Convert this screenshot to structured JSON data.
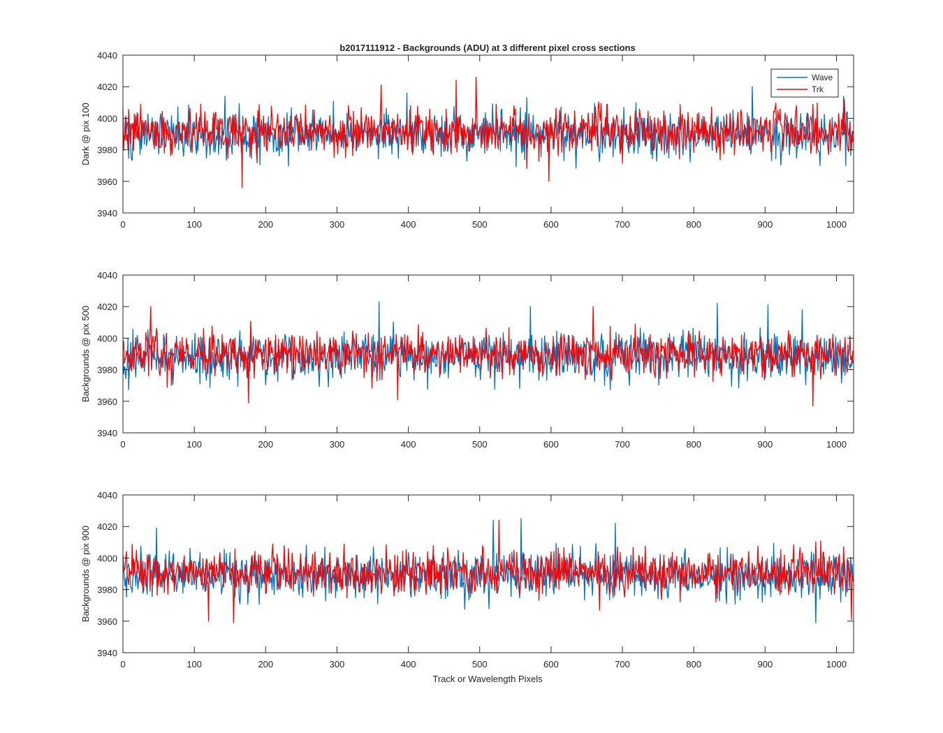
{
  "chart_data": [
    {
      "type": "line",
      "title": "b2017111912 - Backgrounds (ADU) at 3 different pixel cross sections",
      "xlabel": "",
      "ylabel": "Dark @ pix 100",
      "xlim": [
        0,
        1024
      ],
      "ylim": [
        3940,
        4040
      ],
      "xticks": [
        0,
        100,
        200,
        300,
        400,
        500,
        600,
        700,
        800,
        900,
        1000
      ],
      "yticks": [
        3940,
        3960,
        3980,
        4000,
        4020,
        4040
      ],
      "grid": false,
      "legend": {
        "position": "top-right",
        "entries": [
          "Wave",
          "Trk"
        ]
      },
      "series": [
        {
          "name": "Wave",
          "color": "#0072BD",
          "mean": 3990,
          "std": 7.5,
          "seed": 101,
          "peaks": [
            [
              143,
              4014
            ],
            [
              398,
              4016
            ],
            [
              566,
              4013
            ],
            [
              882,
              4020
            ],
            [
              1010,
              4014
            ]
          ]
        },
        {
          "name": "Trk",
          "color": "#FF0000",
          "mean": 3992,
          "std": 7.0,
          "seed": 202,
          "peaks": [
            [
              167,
              3956
            ],
            [
              362,
              4021
            ],
            [
              467,
              4024
            ],
            [
              495,
              4026
            ],
            [
              597,
              3960
            ],
            [
              1011,
              4012
            ]
          ]
        }
      ]
    },
    {
      "type": "line",
      "title": "",
      "xlabel": "",
      "ylabel": "Backgrounds @ pix 500",
      "xlim": [
        0,
        1024
      ],
      "ylim": [
        3940,
        4040
      ],
      "xticks": [
        0,
        100,
        200,
        300,
        400,
        500,
        600,
        700,
        800,
        900,
        1000
      ],
      "yticks": [
        3940,
        3960,
        3980,
        4000,
        4020,
        4040
      ],
      "grid": false,
      "series": [
        {
          "name": "Wave",
          "color": "#0072BD",
          "mean": 3988,
          "std": 7.5,
          "seed": 303,
          "peaks": [
            [
              359,
              4023
            ],
            [
              571,
              4020
            ],
            [
              833,
              4022
            ],
            [
              904,
              4021
            ],
            [
              952,
              4018
            ]
          ]
        },
        {
          "name": "Trk",
          "color": "#FF0000",
          "mean": 3990,
          "std": 7.0,
          "seed": 404,
          "peaks": [
            [
              39,
              4020
            ],
            [
              176,
              3959
            ],
            [
              385,
              3961
            ],
            [
              659,
              4020
            ],
            [
              967,
              3957
            ]
          ]
        }
      ]
    },
    {
      "type": "line",
      "title": "",
      "xlabel": "Track or Wavelength Pixels",
      "ylabel": "Backgrounds @ pix 900",
      "xlim": [
        0,
        1024
      ],
      "ylim": [
        3940,
        4040
      ],
      "xticks": [
        0,
        100,
        200,
        300,
        400,
        500,
        600,
        700,
        800,
        900,
        1000
      ],
      "yticks": [
        3940,
        3960,
        3980,
        4000,
        4020,
        4040
      ],
      "grid": false,
      "series": [
        {
          "name": "Wave",
          "color": "#0072BD",
          "mean": 3989,
          "std": 7.5,
          "seed": 505,
          "peaks": [
            [
              47,
              4019
            ],
            [
              519,
              4024
            ],
            [
              558,
              4025
            ],
            [
              690,
              4022
            ],
            [
              971,
              3959
            ]
          ]
        },
        {
          "name": "Trk",
          "color": "#FF0000",
          "mean": 3991,
          "std": 7.0,
          "seed": 606,
          "peaks": [
            [
              120,
              3960
            ],
            [
              155,
              3959
            ],
            [
              527,
              4024
            ],
            [
              668,
              3967
            ],
            [
              1021,
              3961
            ]
          ]
        }
      ]
    }
  ]
}
